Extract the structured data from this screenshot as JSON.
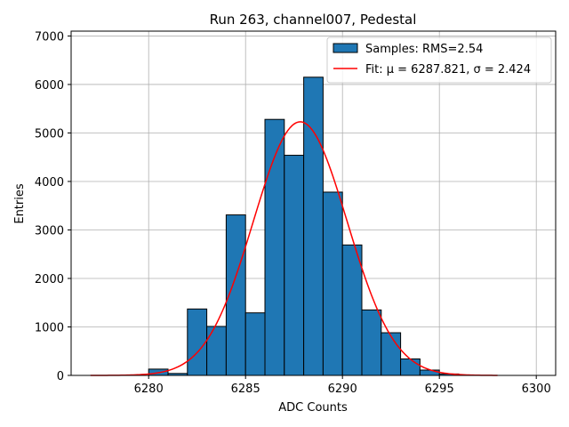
{
  "chart_data": {
    "type": "bar",
    "title": "Run 263, channel007, Pedestal",
    "xlabel": "ADC Counts",
    "ylabel": "Entries",
    "xlim": [
      6276,
      6301
    ],
    "ylim": [
      0,
      7100
    ],
    "xticks": [
      6280,
      6285,
      6290,
      6295,
      6300
    ],
    "yticks": [
      0,
      1000,
      2000,
      3000,
      4000,
      5000,
      6000,
      7000
    ],
    "grid": true,
    "legend_position": "top-right",
    "bin_width": 1,
    "bins": [
      {
        "x": 6280,
        "value": 130
      },
      {
        "x": 6281,
        "value": 40
      },
      {
        "x": 6282,
        "value": 1370
      },
      {
        "x": 6283,
        "value": 1010
      },
      {
        "x": 6284,
        "value": 3310
      },
      {
        "x": 6285,
        "value": 1290
      },
      {
        "x": 6286,
        "value": 5280
      },
      {
        "x": 6287,
        "value": 4540
      },
      {
        "x": 6288,
        "value": 6150
      },
      {
        "x": 6289,
        "value": 3780
      },
      {
        "x": 6290,
        "value": 2690
      },
      {
        "x": 6291,
        "value": 1350
      },
      {
        "x": 6292,
        "value": 880
      },
      {
        "x": 6293,
        "value": 340
      },
      {
        "x": 6294,
        "value": 110
      },
      {
        "x": 6295,
        "value": 30
      }
    ],
    "fit": {
      "mu": 6287.821,
      "sigma": 2.424,
      "amplitude": 5230,
      "x_range": [
        6277,
        6298
      ]
    },
    "series": [
      {
        "name": "Samples: RMS=2.54",
        "kind": "histogram",
        "color": "#1f77b4"
      },
      {
        "name": "Fit: μ = 6287.821, σ = 2.424",
        "kind": "line",
        "color": "#ff0000"
      }
    ]
  }
}
